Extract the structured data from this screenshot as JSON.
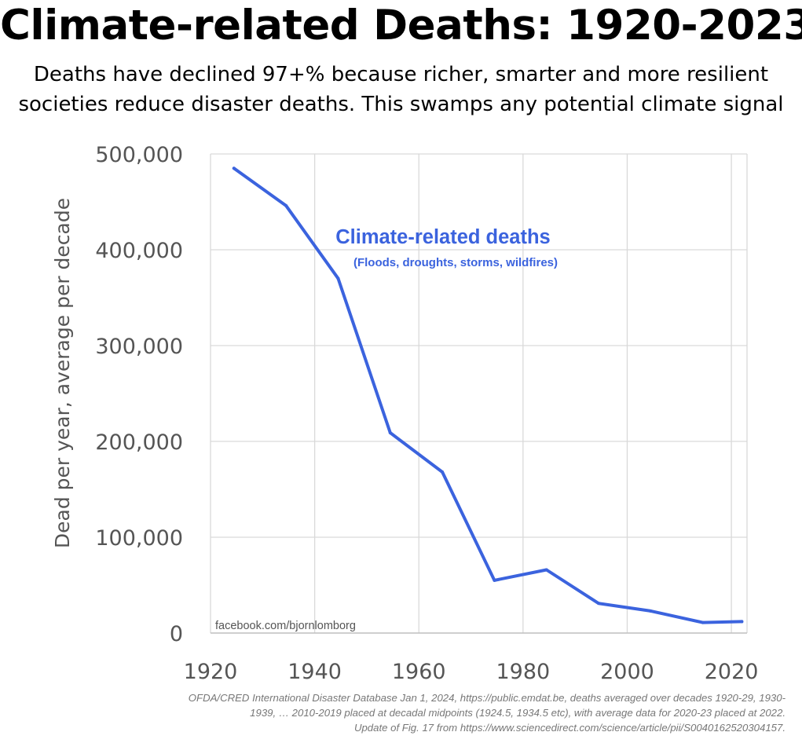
{
  "title": "Climate-related Deaths: 1920-2023",
  "subtitle_lines": [
    "Deaths have declined 97+% because richer, smarter and more resilient",
    "societies reduce disaster deaths. This swamps any potential climate signal"
  ],
  "footer_lines": [
    "OFDA/CRED International Disaster Database Jan 1, 2024,  https://public.emdat.be, deaths averaged over decades 1920-29, 1930-",
    "1939, … 2010-2019 placed at decadal midpoints (1924.5, 1934.5 etc), with average data for 2020-23 placed at 2022.",
    "Update of Fig. 17 from https://www.sciencedirect.com/science/article/pii/S0040162520304157."
  ],
  "chart_data": {
    "type": "line",
    "title": "Climate-related Deaths: 1920-2023",
    "ylabel": "Dead per year, average per decade",
    "xlabel": "",
    "xlim": [
      1920,
      2023
    ],
    "ylim": [
      0,
      500000
    ],
    "x_ticks": [
      1920,
      1940,
      1960,
      1980,
      2000,
      2020
    ],
    "y_ticks": [
      0,
      100000,
      200000,
      300000,
      400000,
      500000
    ],
    "x_tick_labels": [
      "1920",
      "1940",
      "1960",
      "1980",
      "2000",
      "2020"
    ],
    "y_tick_labels": [
      "0",
      "100,000",
      "200,000",
      "300,000",
      "400,000",
      "500,000"
    ],
    "grid": true,
    "series": [
      {
        "name": "Climate-related deaths",
        "color": "#3b63de",
        "x": [
          1924.5,
          1934.5,
          1944.5,
          1954.5,
          1964.5,
          1974.5,
          1984.5,
          1994.5,
          2004.5,
          2014.5,
          2022
        ],
        "y": [
          485000,
          446000,
          370000,
          209000,
          168000,
          55000,
          66000,
          31000,
          23000,
          11000,
          12000
        ]
      }
    ],
    "annotations": [
      {
        "text": "Climate-related deaths",
        "color": "#3b63de"
      },
      {
        "text": "(Floods, droughts, storms, wildfires)",
        "color": "#3b63de"
      },
      {
        "text": "facebook.com/bjornlomborg",
        "color": "#555555"
      }
    ]
  }
}
